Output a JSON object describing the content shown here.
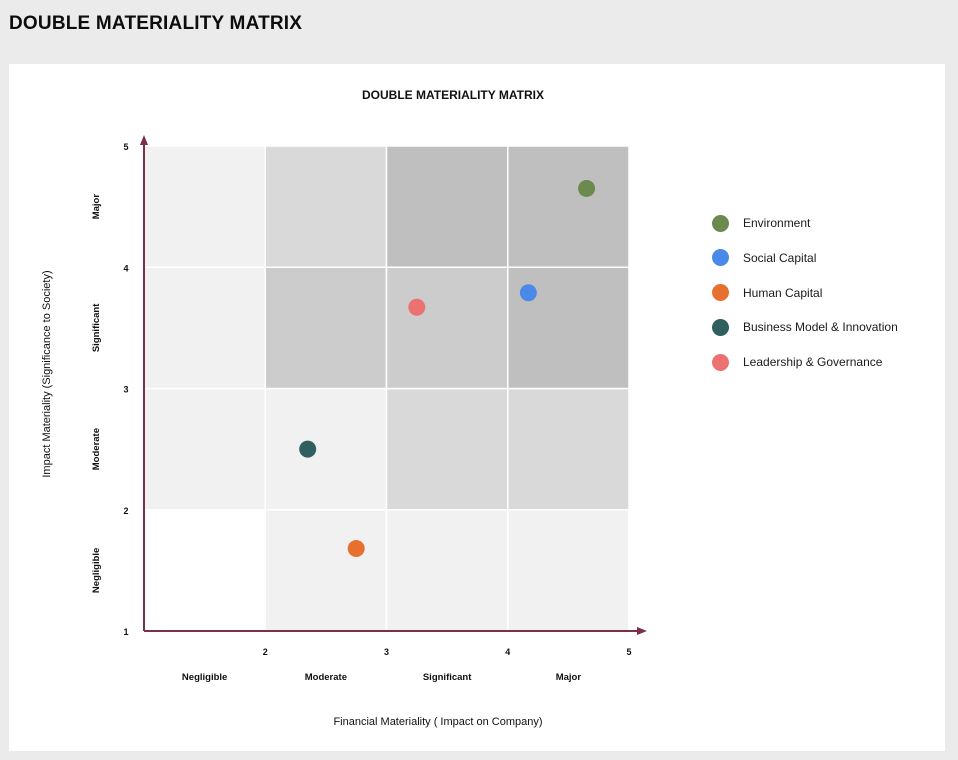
{
  "page_title": "DOUBLE MATERIALITY MATRIX",
  "chart_data": {
    "type": "scatter",
    "title": "DOUBLE MATERIALITY MATRIX",
    "xlabel": "Financial Materiality ( Impact on Company)",
    "ylabel": "Impact Materiality (Significance to Society)",
    "xlim": [
      1,
      5
    ],
    "ylim": [
      1,
      5
    ],
    "x_ticks": [
      "2",
      "3",
      "4",
      "5"
    ],
    "y_ticks": [
      "1",
      "2",
      "3",
      "4",
      "5"
    ],
    "x_category_labels": [
      "Negligible",
      "Moderate",
      "Significant",
      "Major"
    ],
    "y_category_labels": [
      "Negligible",
      "Moderate",
      "Significant",
      "Major"
    ],
    "heatmap_levels": [
      [
        0,
        1,
        1,
        1
      ],
      [
        1,
        1,
        2,
        2
      ],
      [
        1,
        3,
        3,
        4
      ],
      [
        1,
        2,
        4,
        4
      ]
    ],
    "level_colors": [
      "#ffffff",
      "#f1f1f1",
      "#d9d9d9",
      "#cccccc",
      "#bfbfbf"
    ],
    "axis_color": "#7a2f4b",
    "legend_position": "right",
    "series": [
      {
        "name": "Environment",
        "color": "#6b8a4e",
        "x": 4.65,
        "y": 4.65
      },
      {
        "name": "Social Capital",
        "color": "#4a89e8",
        "x": 4.17,
        "y": 3.79
      },
      {
        "name": "Human Capital",
        "color": "#e8702f",
        "x": 2.75,
        "y": 1.68
      },
      {
        "name": "Business Model & Innovation",
        "color": "#2f5f5e",
        "x": 2.35,
        "y": 2.5
      },
      {
        "name": "Leadership & Governance",
        "color": "#ec7272",
        "x": 3.25,
        "y": 3.67
      }
    ]
  }
}
